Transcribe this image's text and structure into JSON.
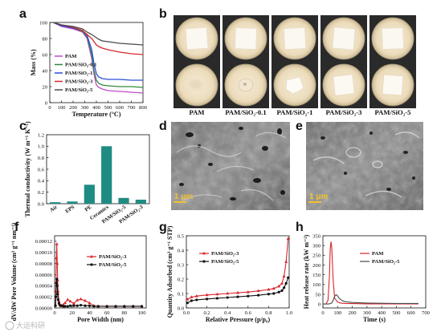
{
  "figure": {
    "panel_labels": [
      "a",
      "b",
      "c",
      "d",
      "e",
      "f",
      "g",
      "h"
    ],
    "scale_bar": "1 μm",
    "watermark": "大运科研",
    "sample_names": [
      "PAM",
      "PAM/SiO₂-0.1",
      "PAM/SiO₂-1",
      "PAM/SiO₂-3",
      "PAM/SiO₂-5"
    ],
    "colors": {
      "pam": "#c04ac8",
      "s01": "#2d8a3c",
      "s1": "#2b4fd8",
      "s3": "#d7262b",
      "s5": "#4a4a4a",
      "bar": "#1f8c83"
    }
  },
  "chart_data": [
    {
      "type": "line",
      "panel": "a",
      "xlabel": "Temperature (°C)",
      "ylabel": "Mass (%)",
      "xlim": [
        0,
        800
      ],
      "ylim": [
        0,
        100
      ],
      "xticks": [
        0,
        100,
        200,
        300,
        400,
        500,
        600,
        700,
        800
      ],
      "yticks": [
        0,
        20,
        40,
        60,
        80,
        100
      ],
      "series": [
        {
          "name": "PAM",
          "color": "#c04ac8",
          "x": [
            30,
            100,
            200,
            280,
            320,
            360,
            380,
            400,
            420,
            450,
            500,
            600,
            700,
            800
          ],
          "y": [
            100,
            95,
            92,
            88,
            80,
            55,
            35,
            22,
            19,
            17,
            15,
            14,
            13,
            12
          ]
        },
        {
          "name": "PAM/SiO₂-0.1",
          "color": "#2d8a3c",
          "x": [
            30,
            100,
            200,
            280,
            320,
            360,
            380,
            400,
            420,
            450,
            500,
            600,
            700,
            800
          ],
          "y": [
            100,
            96,
            93,
            89,
            82,
            60,
            40,
            28,
            24,
            22,
            21,
            20,
            20,
            19
          ]
        },
        {
          "name": "PAM/SiO₂-1",
          "color": "#2b4fd8",
          "x": [
            30,
            100,
            200,
            280,
            320,
            360,
            380,
            400,
            420,
            450,
            500,
            600,
            700,
            800
          ],
          "y": [
            100,
            96,
            93,
            90,
            84,
            66,
            48,
            36,
            32,
            30,
            29,
            29,
            28,
            28
          ]
        },
        {
          "name": "PAM/SiO₂-3",
          "color": "#d7262b",
          "x": [
            30,
            100,
            200,
            280,
            320,
            360,
            380,
            400,
            420,
            450,
            500,
            600,
            700,
            800
          ],
          "y": [
            100,
            97,
            94,
            90,
            85,
            80,
            76,
            72,
            70,
            68,
            66,
            63,
            61,
            60
          ]
        },
        {
          "name": "PAM/SiO₂-5",
          "color": "#4a4a4a",
          "x": [
            30,
            100,
            200,
            280,
            320,
            360,
            380,
            400,
            420,
            450,
            500,
            600,
            700,
            800
          ],
          "y": [
            100,
            97,
            95,
            92,
            88,
            85,
            83,
            81,
            79,
            77,
            76,
            74,
            73,
            72
          ]
        }
      ]
    },
    {
      "type": "bar",
      "panel": "c",
      "ylabel": "Thermal conductivity (W m⁻¹ K⁻¹)",
      "ylim": [
        0,
        1.2
      ],
      "yticks": [
        0.0,
        0.2,
        0.4,
        0.6,
        0.8,
        1.0,
        1.2
      ],
      "categories": [
        "Air",
        "EPS",
        "PE",
        "Ceramics",
        "PAM/SiO₂-5",
        "PAM/SiO₂-3"
      ],
      "values": [
        0.026,
        0.038,
        0.33,
        1.0,
        0.1,
        0.07
      ],
      "color": "#1f8c83"
    },
    {
      "type": "line",
      "panel": "f",
      "xlabel": "Pore Width (nm)",
      "ylabel": "dV/dW Pore Volume (cm³ g⁻¹ nm⁻¹)",
      "xlim": [
        0,
        105
      ],
      "ylim": [
        0,
        0.00013
      ],
      "xticks": [
        0,
        20,
        40,
        60,
        80,
        100
      ],
      "yticks": [
        "0.00000",
        "0.00002",
        "0.00004",
        "0.00006",
        "0.00008",
        "0.00010",
        "0.00012"
      ],
      "series": [
        {
          "name": "PAM/SiO₂-3",
          "color": "#d7262b",
          "marker": "triangle",
          "x": [
            1,
            1.5,
            2,
            2.5,
            3,
            3.5,
            4,
            5,
            6,
            7,
            8,
            10,
            12,
            15,
            18,
            22,
            26,
            30,
            35,
            40,
            45,
            50,
            60,
            70,
            80,
            90,
            100
          ],
          "y": [
            5e-06,
            3e-05,
            9e-05,
            0.000115,
            8e-05,
            5e-05,
            3e-05,
            1.2e-05,
            6e-06,
            4e-06,
            4e-06,
            6e-06,
            9e-06,
            1.5e-05,
            1.2e-05,
            8e-06,
            1.4e-05,
            1.6e-05,
            1.3e-05,
            9e-06,
            4e-06,
            3e-06,
            3e-06,
            3e-06,
            3e-06,
            3e-06,
            3e-06
          ]
        },
        {
          "name": "PAM/SiO₂-5",
          "color": "#111111",
          "marker": "circle",
          "x": [
            1,
            1.5,
            2,
            2.5,
            3,
            3.5,
            4,
            5,
            6,
            7,
            8,
            10,
            12,
            15,
            18,
            22,
            26,
            30,
            35,
            40,
            45,
            50,
            60,
            70,
            80,
            90,
            100
          ],
          "y": [
            4e-06,
            2e-05,
            4.5e-05,
            5.2e-05,
            4e-05,
            2.5e-05,
            1.5e-05,
            8e-06,
            5e-06,
            4e-06,
            4e-06,
            3e-06,
            3e-06,
            3e-06,
            4e-06,
            4e-06,
            4e-06,
            5e-06,
            4e-06,
            4e-06,
            3e-06,
            3e-06,
            3e-06,
            3e-06,
            3e-06,
            3e-06,
            3e-06
          ]
        }
      ]
    },
    {
      "type": "line",
      "panel": "g",
      "xlabel": "Relative Pressure (p/p₀)",
      "ylabel": "Quantity Adsorbed (cm³ g⁻¹ STP)",
      "xlim": [
        0,
        1.0
      ],
      "ylim": [
        0,
        0.5
      ],
      "xticks": [
        0.0,
        0.2,
        0.4,
        0.6,
        0.8,
        1.0
      ],
      "yticks": [
        0.0,
        0.1,
        0.2,
        0.3,
        0.4,
        0.5
      ],
      "series": [
        {
          "name": "PAM/SiO₂-3",
          "color": "#d7262b",
          "marker": "triangle",
          "x": [
            0.01,
            0.05,
            0.1,
            0.2,
            0.3,
            0.4,
            0.5,
            0.6,
            0.7,
            0.8,
            0.85,
            0.9,
            0.93,
            0.95,
            0.97,
            0.99
          ],
          "y": [
            0.06,
            0.075,
            0.082,
            0.09,
            0.095,
            0.1,
            0.105,
            0.11,
            0.118,
            0.128,
            0.135,
            0.15,
            0.17,
            0.22,
            0.32,
            0.48
          ]
        },
        {
          "name": "PAM/SiO₂-5",
          "color": "#111111",
          "marker": "circle",
          "x": [
            0.01,
            0.05,
            0.1,
            0.2,
            0.3,
            0.4,
            0.5,
            0.6,
            0.7,
            0.8,
            0.85,
            0.9,
            0.93,
            0.95,
            0.97,
            0.99
          ],
          "y": [
            0.035,
            0.05,
            0.056,
            0.062,
            0.067,
            0.072,
            0.077,
            0.082,
            0.088,
            0.096,
            0.1,
            0.11,
            0.12,
            0.14,
            0.17,
            0.21
          ]
        }
      ]
    },
    {
      "type": "line",
      "panel": "h",
      "xlabel": "Time (s)",
      "ylabel": "Heat release rate (kW m⁻²)",
      "xlim": [
        0,
        700
      ],
      "ylim": [
        -20,
        350
      ],
      "xticks": [
        0,
        100,
        200,
        300,
        400,
        500,
        600,
        700
      ],
      "yticks": [
        0,
        50,
        100,
        150,
        200,
        250,
        300,
        350
      ],
      "series": [
        {
          "name": "PAM",
          "color": "#d7262b",
          "x": [
            0,
            20,
            35,
            45,
            50,
            55,
            60,
            70,
            80,
            100,
            120,
            150,
            200,
            300,
            400,
            500,
            600,
            650
          ],
          "y": [
            0,
            0,
            20,
            150,
            280,
            320,
            290,
            120,
            30,
            10,
            5,
            3,
            2,
            1,
            1,
            1,
            1,
            1
          ]
        },
        {
          "name": "PAM/SiO₂-5",
          "color": "#4a4a4a",
          "x": [
            0,
            40,
            60,
            70,
            80,
            90,
            100,
            110,
            130,
            150,
            200,
            300,
            400,
            500,
            600,
            650
          ],
          "y": [
            0,
            0,
            5,
            20,
            40,
            48,
            42,
            30,
            18,
            12,
            8,
            5,
            4,
            3,
            3,
            3
          ]
        }
      ]
    }
  ]
}
